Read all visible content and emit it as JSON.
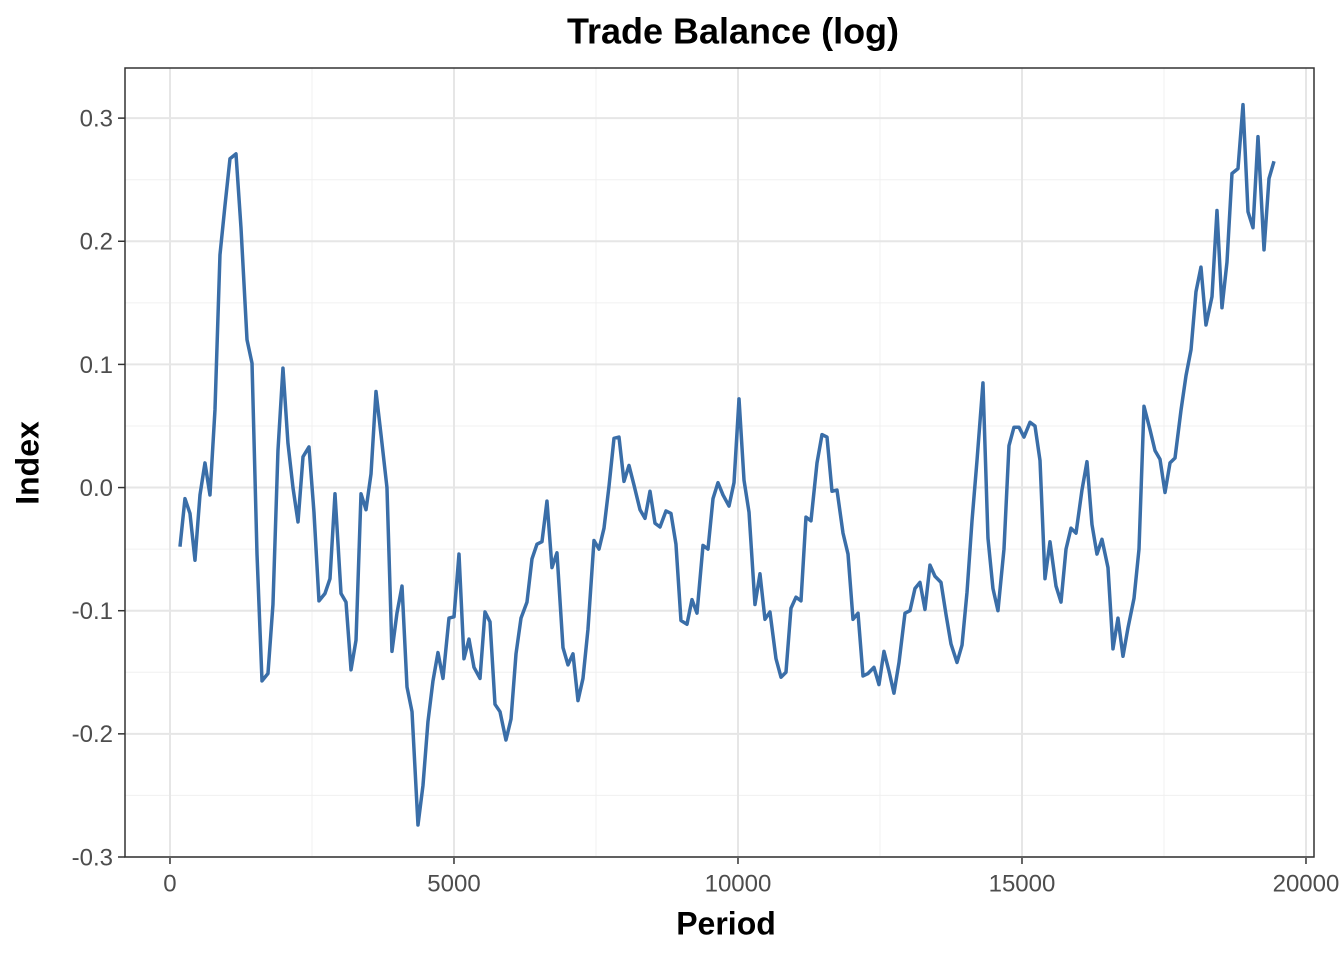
{
  "chart_data": {
    "type": "line",
    "title": "Trade Balance (log)",
    "x_label": "Period",
    "y_label": "Index",
    "color": "#3a6ea8",
    "grid": true,
    "xlim": [
      -792,
      20141
    ],
    "ylim": [
      -0.3,
      0.3407
    ],
    "xticks": [
      0,
      5000,
      10000,
      15000,
      20000
    ],
    "yticks": [
      -0.3,
      -0.2,
      -0.1,
      {
        "value": 0,
        "label": "0.0"
      },
      0.1,
      0.2,
      0.3
    ],
    "xminorticks": [
      2500,
      7500,
      12500,
      17500
    ],
    "yminorticks": [
      -0.25,
      -0.15,
      -0.05,
      0.05,
      0.15,
      0.25
    ],
    "x": [
      176,
      264,
      352,
      440,
      528,
      616,
      704,
      792,
      880,
      968,
      1056,
      1162,
      1250,
      1356,
      1444,
      1532,
      1620,
      1725,
      1813,
      1901,
      1989,
      2077,
      2165,
      2254,
      2342,
      2447,
      2535,
      2623,
      2729,
      2817,
      2905,
      3011,
      3099,
      3187,
      3275,
      3363,
      3451,
      3539,
      3627,
      3715,
      3820,
      3908,
      3996,
      4085,
      4173,
      4261,
      4366,
      4454,
      4542,
      4630,
      4718,
      4806,
      4912,
      5000,
      5088,
      5176,
      5264,
      5352,
      5458,
      5546,
      5634,
      5722,
      5810,
      5915,
      6004,
      6092,
      6180,
      6285,
      6373,
      6461,
      6549,
      6637,
      6725,
      6813,
      6919,
      7007,
      7095,
      7183,
      7271,
      7359,
      7465,
      7553,
      7641,
      7729,
      7817,
      7905,
      7993,
      8081,
      8169,
      8275,
      8363,
      8451,
      8539,
      8627,
      8732,
      8820,
      8908,
      8996,
      9102,
      9190,
      9278,
      9384,
      9472,
      9560,
      9648,
      9736,
      9842,
      9930,
      10018,
      10106,
      10194,
      10299,
      10387,
      10475,
      10563,
      10669,
      10757,
      10845,
      10933,
      11021,
      11109,
      11197,
      11285,
      11391,
      11479,
      11567,
      11655,
      11743,
      11849,
      11937,
      12025,
      12113,
      12201,
      12289,
      12394,
      12482,
      12570,
      12658,
      12746,
      12835,
      12940,
      13028,
      13116,
      13204,
      13292,
      13380,
      13468,
      13574,
      13662,
      13750,
      13856,
      13944,
      14032,
      14120,
      14208,
      14313,
      14401,
      14489,
      14577,
      14683,
      14771,
      14859,
      14947,
      15035,
      15141,
      15229,
      15317,
      15405,
      15493,
      15599,
      15687,
      15775,
      15863,
      15951,
      16056,
      16144,
      16232,
      16320,
      16408,
      16514,
      16602,
      16690,
      16778,
      16866,
      16972,
      17060,
      17148,
      17254,
      17342,
      17430,
      17518,
      17606,
      17694,
      17800,
      17888,
      17976,
      18063,
      18151,
      18239,
      18345,
      18433,
      18521,
      18609,
      18697,
      18803,
      18891,
      18979,
      19067,
      19155,
      19261,
      19349,
      19437
    ],
    "values": [
      -0.048,
      -0.009,
      -0.021,
      -0.059,
      -0.006,
      0.02,
      -0.006,
      0.063,
      0.189,
      0.229,
      0.267,
      0.271,
      0.211,
      0.12,
      0.101,
      -0.054,
      -0.157,
      -0.151,
      -0.095,
      0.03,
      0.097,
      0.036,
      0,
      -0.028,
      0.025,
      0.033,
      -0.02,
      -0.092,
      -0.086,
      -0.074,
      -0.005,
      -0.086,
      -0.093,
      -0.148,
      -0.124,
      -0.005,
      -0.018,
      0.011,
      0.078,
      0.043,
      0,
      -0.133,
      -0.102,
      -0.08,
      -0.162,
      -0.182,
      -0.274,
      -0.242,
      -0.19,
      -0.157,
      -0.134,
      -0.155,
      -0.106,
      -0.105,
      -0.054,
      -0.139,
      -0.123,
      -0.146,
      -0.155,
      -0.101,
      -0.109,
      -0.176,
      -0.182,
      -0.205,
      -0.188,
      -0.135,
      -0.106,
      -0.093,
      -0.058,
      -0.046,
      -0.044,
      -0.011,
      -0.065,
      -0.053,
      -0.13,
      -0.144,
      -0.135,
      -0.173,
      -0.155,
      -0.115,
      -0.043,
      -0.05,
      -0.033,
      0.001,
      0.04,
      0.041,
      0.005,
      0.018,
      0.002,
      -0.018,
      -0.025,
      -0.003,
      -0.029,
      -0.032,
      -0.019,
      -0.021,
      -0.046,
      -0.108,
      -0.111,
      -0.091,
      -0.102,
      -0.047,
      -0.05,
      -0.009,
      0.004,
      -0.006,
      -0.015,
      0.004,
      0.072,
      0.006,
      -0.02,
      -0.095,
      -0.07,
      -0.107,
      -0.101,
      -0.139,
      -0.154,
      -0.15,
      -0.098,
      -0.089,
      -0.092,
      -0.024,
      -0.027,
      0.02,
      0.043,
      0.041,
      -0.003,
      -0.002,
      -0.037,
      -0.054,
      -0.107,
      -0.102,
      -0.153,
      -0.151,
      -0.146,
      -0.16,
      -0.133,
      -0.149,
      -0.167,
      -0.142,
      -0.102,
      -0.1,
      -0.082,
      -0.077,
      -0.099,
      -0.063,
      -0.072,
      -0.077,
      -0.103,
      -0.127,
      -0.142,
      -0.128,
      -0.085,
      -0.027,
      0.022,
      0.085,
      -0.041,
      -0.082,
      -0.1,
      -0.05,
      0.034,
      0.049,
      0.049,
      0.041,
      0.053,
      0.05,
      0.022,
      -0.074,
      -0.044,
      -0.08,
      -0.093,
      -0.05,
      -0.033,
      -0.037,
      -0.002,
      0.021,
      -0.03,
      -0.054,
      -0.042,
      -0.065,
      -0.131,
      -0.106,
      -0.137,
      -0.114,
      -0.09,
      -0.05,
      0.066,
      0.047,
      0.03,
      0.023,
      -0.004,
      0.02,
      0.024,
      0.063,
      0.091,
      0.112,
      0.159,
      0.179,
      0.132,
      0.155,
      0.225,
      0.146,
      0.183,
      0.255,
      0.259,
      0.311,
      0.224,
      0.211,
      0.285,
      0.193,
      0.251,
      0.265
    ]
  }
}
